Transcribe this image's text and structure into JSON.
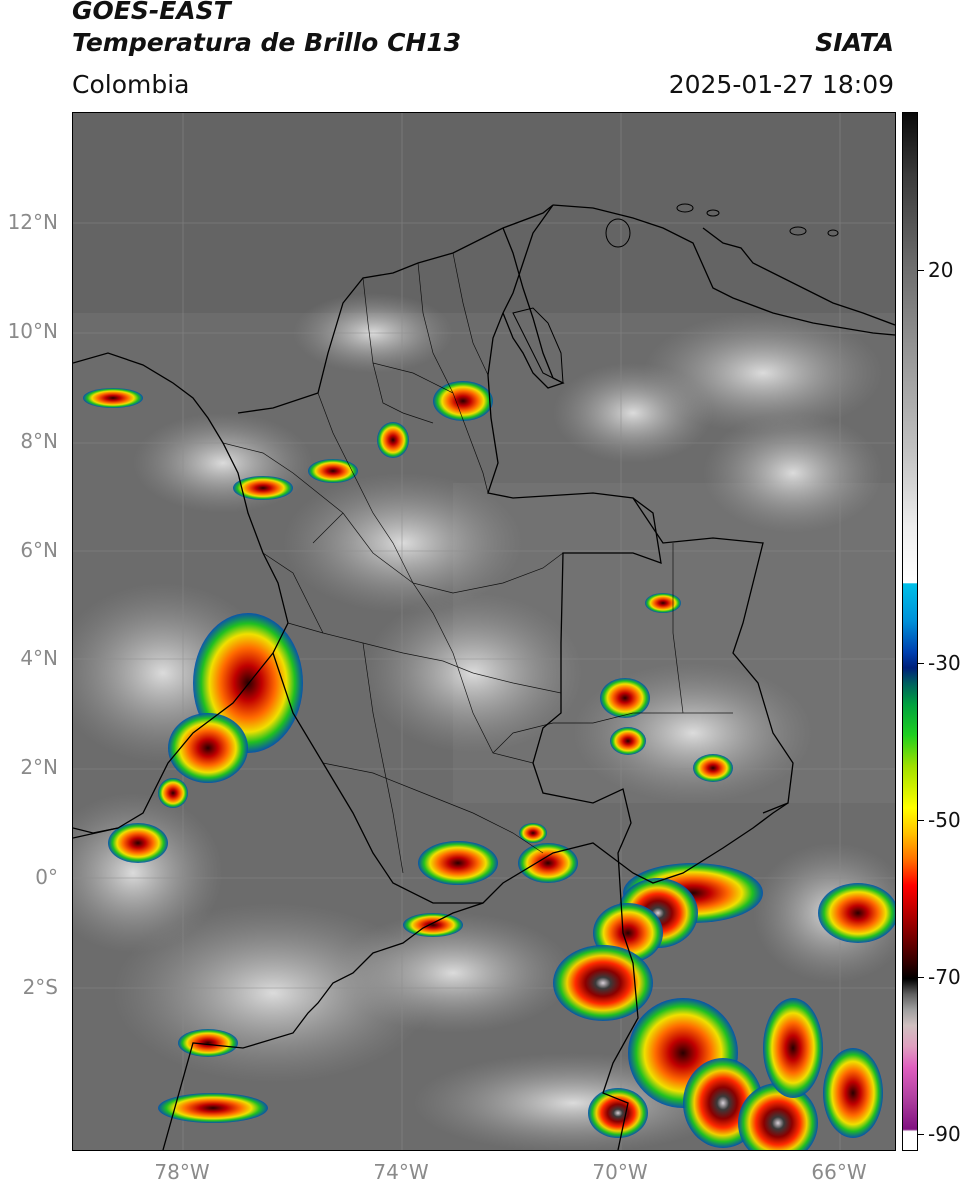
{
  "header": {
    "satellite": "GOES-EAST",
    "product": "Temperatura de Brillo CH13",
    "region": "Colombia",
    "organization": "SIATA",
    "timestamp": "2025-01-27 18:09"
  },
  "map": {
    "lat_labels": [
      "12°N",
      "10°N",
      "8°N",
      "6°N",
      "4°N",
      "2°N",
      "0°",
      "2°S"
    ],
    "lon_labels": [
      "78°W",
      "74°W",
      "70°W",
      "66°W"
    ]
  },
  "colorbar": {
    "labels": [
      "20",
      "-30",
      "-50",
      "-70",
      "-90"
    ],
    "colors": {
      "cold_black": "#0a0a0a",
      "warm_white": "#ffffff",
      "cyan": "#00c0e8",
      "blue": "#0040b0",
      "green": "#20d020",
      "yellow": "#ffff00",
      "orange": "#ff7000",
      "red": "#ff0000",
      "dark_red": "#300000",
      "magenta": "#e060c0",
      "purple": "#801080"
    }
  }
}
